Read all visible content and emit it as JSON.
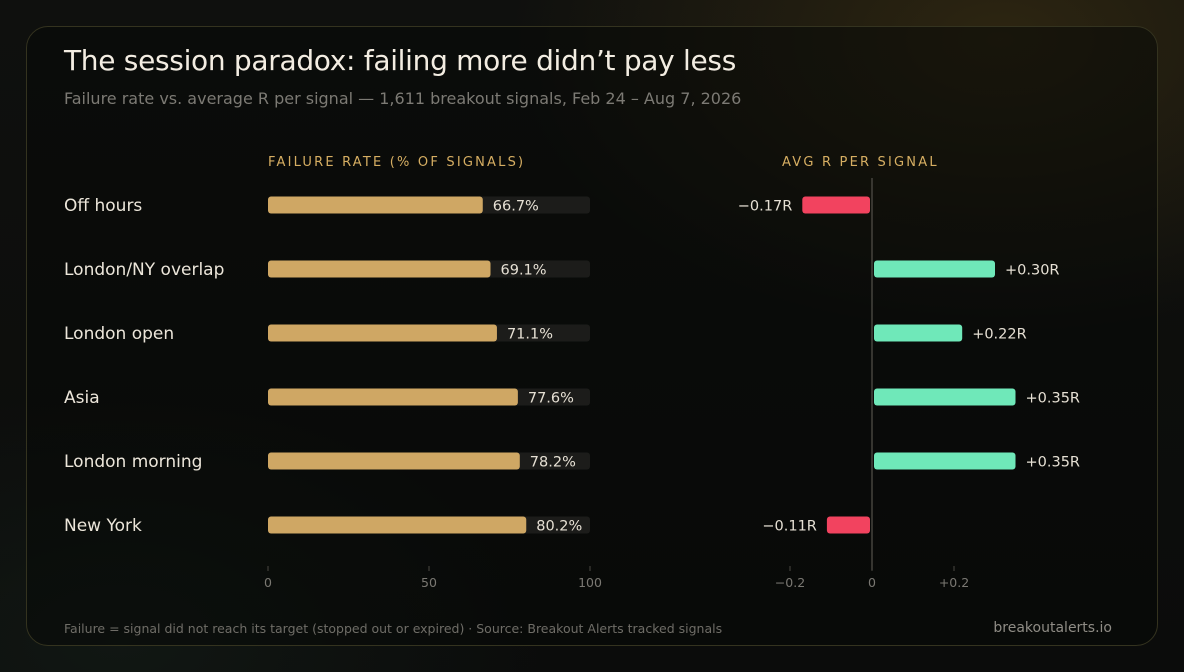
{
  "title": "The session paradox: failing more didn’t pay less",
  "subtitle": "Failure rate vs. average R per signal — 1,611 breakout signals, Feb 24 – Aug 7, 2026",
  "footer": {
    "note": "Failure = signal did not reach its target (stopped out or expired) · Source: Breakout Alerts tracked signals",
    "brand": "breakoutalerts.io"
  },
  "colors": {
    "failure_bar": "#cfa764",
    "positive_bar": "#6fe8b9",
    "negative_bar": "#f2435f",
    "heading": "#d6ae62"
  },
  "chart_data": [
    {
      "type": "bar",
      "orientation": "horizontal",
      "title": "FAILURE RATE (% OF SIGNALS)",
      "categories": [
        "Off hours",
        "London/NY overlap",
        "London open",
        "Asia",
        "London morning",
        "New York"
      ],
      "values": [
        66.7,
        69.1,
        71.1,
        77.6,
        78.2,
        80.2
      ],
      "value_labels": [
        "66.7%",
        "69.1%",
        "71.1%",
        "77.6%",
        "78.2%",
        "80.2%"
      ],
      "xlim": [
        0,
        100
      ],
      "ticks": [
        0,
        50,
        100
      ],
      "tick_labels": [
        "0",
        "50",
        "100"
      ]
    },
    {
      "type": "bar",
      "orientation": "horizontal",
      "title": "AVG R PER SIGNAL",
      "categories": [
        "Off hours",
        "London/NY overlap",
        "London open",
        "Asia",
        "London morning",
        "New York"
      ],
      "values": [
        -0.17,
        0.3,
        0.22,
        0.35,
        0.35,
        -0.11
      ],
      "value_labels": [
        "−0.17R",
        "+0.30R",
        "+0.22R",
        "+0.35R",
        "+0.35R",
        "−0.11R"
      ],
      "xlim": [
        -0.2,
        0.2
      ],
      "ticks": [
        -0.2,
        0,
        0.2
      ],
      "tick_labels": [
        "−0.2",
        "0",
        "+0.2"
      ]
    }
  ]
}
